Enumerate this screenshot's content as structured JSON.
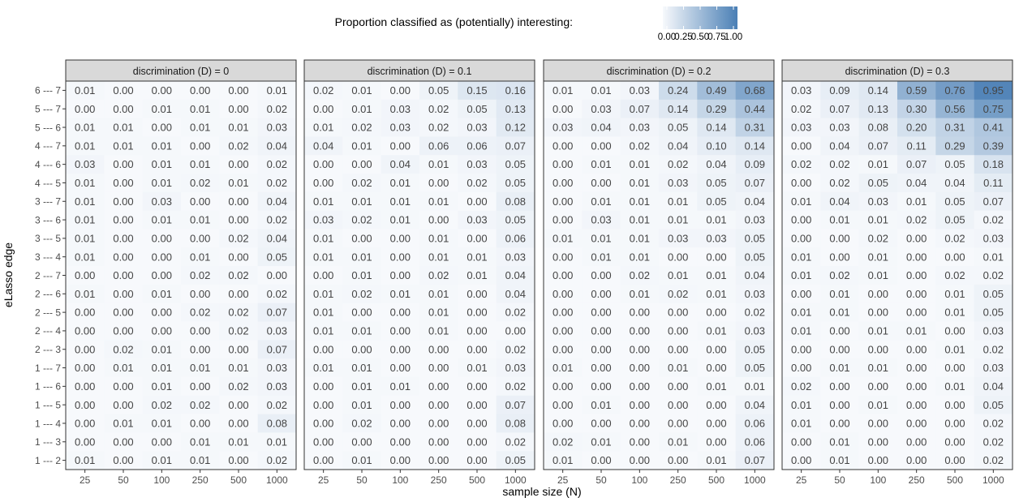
{
  "legend": {
    "title": "Proportion classified as (potentially) interesting:",
    "ticks": [
      "0.00",
      "0.25",
      "0.50",
      "0.75",
      "1.00"
    ],
    "low_color": "#f7f9fc",
    "high_color": "#4a7fb5"
  },
  "chart_data": {
    "type": "heatmap",
    "xlabel": "sample size (N)",
    "ylabel": "eLasso edge",
    "x_categories": [
      "25",
      "50",
      "100",
      "250",
      "500",
      "1000"
    ],
    "y_categories": [
      "6 --- 7",
      "5 --- 7",
      "5 --- 6",
      "4 --- 7",
      "4 --- 6",
      "4 --- 5",
      "3 --- 7",
      "3 --- 6",
      "3 --- 5",
      "3 --- 4",
      "2 --- 7",
      "2 --- 6",
      "2 --- 5",
      "2 --- 4",
      "2 --- 3",
      "1 --- 7",
      "1 --- 6",
      "1 --- 5",
      "1 --- 4",
      "1 --- 3",
      "1 --- 2"
    ],
    "value_range": [
      0,
      1
    ],
    "panels": [
      {
        "title": "discrimination (D) = 0",
        "values": [
          [
            0.01,
            0.0,
            0.0,
            0.0,
            0.0,
            0.01
          ],
          [
            0.0,
            0.0,
            0.01,
            0.01,
            0.0,
            0.02
          ],
          [
            0.01,
            0.01,
            0.0,
            0.01,
            0.01,
            0.03
          ],
          [
            0.01,
            0.01,
            0.01,
            0.0,
            0.02,
            0.04
          ],
          [
            0.03,
            0.0,
            0.01,
            0.01,
            0.0,
            0.02
          ],
          [
            0.01,
            0.0,
            0.01,
            0.02,
            0.01,
            0.02
          ],
          [
            0.01,
            0.0,
            0.03,
            0.0,
            0.0,
            0.04
          ],
          [
            0.01,
            0.0,
            0.01,
            0.01,
            0.0,
            0.02
          ],
          [
            0.01,
            0.0,
            0.0,
            0.0,
            0.02,
            0.04
          ],
          [
            0.01,
            0.0,
            0.0,
            0.01,
            0.0,
            0.05
          ],
          [
            0.0,
            0.0,
            0.0,
            0.02,
            0.02,
            0.0
          ],
          [
            0.01,
            0.0,
            0.01,
            0.0,
            0.0,
            0.02
          ],
          [
            0.0,
            0.0,
            0.0,
            0.02,
            0.02,
            0.07
          ],
          [
            0.0,
            0.0,
            0.0,
            0.0,
            0.02,
            0.03
          ],
          [
            0.0,
            0.02,
            0.01,
            0.0,
            0.0,
            0.07
          ],
          [
            0.0,
            0.01,
            0.01,
            0.01,
            0.01,
            0.03
          ],
          [
            0.0,
            0.0,
            0.01,
            0.0,
            0.02,
            0.03
          ],
          [
            0.0,
            0.0,
            0.02,
            0.02,
            0.0,
            0.02
          ],
          [
            0.0,
            0.01,
            0.01,
            0.0,
            0.0,
            0.08
          ],
          [
            0.0,
            0.0,
            0.0,
            0.01,
            0.01,
            0.01
          ],
          [
            0.01,
            0.0,
            0.01,
            0.01,
            0.0,
            0.02
          ]
        ]
      },
      {
        "title": "discrimination (D) = 0.1",
        "values": [
          [
            0.02,
            0.01,
            0.0,
            0.05,
            0.15,
            0.16
          ],
          [
            0.0,
            0.01,
            0.03,
            0.02,
            0.05,
            0.13
          ],
          [
            0.01,
            0.02,
            0.03,
            0.02,
            0.03,
            0.12
          ],
          [
            0.04,
            0.01,
            0.0,
            0.06,
            0.06,
            0.07
          ],
          [
            0.0,
            0.0,
            0.04,
            0.01,
            0.03,
            0.05
          ],
          [
            0.0,
            0.02,
            0.01,
            0.0,
            0.02,
            0.05
          ],
          [
            0.01,
            0.01,
            0.01,
            0.01,
            0.0,
            0.08
          ],
          [
            0.03,
            0.02,
            0.01,
            0.0,
            0.03,
            0.05
          ],
          [
            0.01,
            0.0,
            0.0,
            0.01,
            0.0,
            0.06
          ],
          [
            0.01,
            0.01,
            0.0,
            0.01,
            0.01,
            0.03
          ],
          [
            0.0,
            0.01,
            0.0,
            0.02,
            0.01,
            0.04
          ],
          [
            0.01,
            0.02,
            0.01,
            0.01,
            0.0,
            0.04
          ],
          [
            0.01,
            0.0,
            0.0,
            0.01,
            0.0,
            0.02
          ],
          [
            0.01,
            0.01,
            0.0,
            0.01,
            0.0,
            0.0
          ],
          [
            0.0,
            0.0,
            0.0,
            0.0,
            0.0,
            0.02
          ],
          [
            0.01,
            0.01,
            0.0,
            0.0,
            0.01,
            0.03
          ],
          [
            0.0,
            0.01,
            0.01,
            0.0,
            0.0,
            0.02
          ],
          [
            0.0,
            0.01,
            0.0,
            0.0,
            0.0,
            0.07
          ],
          [
            0.0,
            0.02,
            0.0,
            0.0,
            0.0,
            0.08
          ],
          [
            0.0,
            0.0,
            0.0,
            0.0,
            0.0,
            0.02
          ],
          [
            0.0,
            0.01,
            0.0,
            0.0,
            0.0,
            0.05
          ]
        ]
      },
      {
        "title": "discrimination (D) = 0.2",
        "values": [
          [
            0.01,
            0.01,
            0.03,
            0.24,
            0.49,
            0.68
          ],
          [
            0.0,
            0.03,
            0.07,
            0.14,
            0.29,
            0.44
          ],
          [
            0.03,
            0.04,
            0.03,
            0.05,
            0.14,
            0.31
          ],
          [
            0.0,
            0.0,
            0.02,
            0.04,
            0.1,
            0.14
          ],
          [
            0.0,
            0.01,
            0.01,
            0.02,
            0.04,
            0.09
          ],
          [
            0.0,
            0.0,
            0.01,
            0.03,
            0.05,
            0.07
          ],
          [
            0.0,
            0.01,
            0.01,
            0.01,
            0.05,
            0.04
          ],
          [
            0.0,
            0.03,
            0.01,
            0.01,
            0.01,
            0.03
          ],
          [
            0.01,
            0.01,
            0.01,
            0.03,
            0.03,
            0.05
          ],
          [
            0.0,
            0.01,
            0.01,
            0.0,
            0.0,
            0.05
          ],
          [
            0.0,
            0.0,
            0.02,
            0.01,
            0.01,
            0.04
          ],
          [
            0.0,
            0.0,
            0.01,
            0.02,
            0.01,
            0.03
          ],
          [
            0.0,
            0.0,
            0.0,
            0.0,
            0.0,
            0.02
          ],
          [
            0.0,
            0.0,
            0.0,
            0.0,
            0.01,
            0.03
          ],
          [
            0.0,
            0.0,
            0.0,
            0.0,
            0.0,
            0.05
          ],
          [
            0.01,
            0.0,
            0.0,
            0.01,
            0.0,
            0.05
          ],
          [
            0.0,
            0.0,
            0.0,
            0.0,
            0.01,
            0.01
          ],
          [
            0.0,
            0.01,
            0.0,
            0.0,
            0.0,
            0.04
          ],
          [
            0.0,
            0.0,
            0.0,
            0.0,
            0.0,
            0.06
          ],
          [
            0.02,
            0.01,
            0.0,
            0.01,
            0.0,
            0.06
          ],
          [
            0.01,
            0.0,
            0.0,
            0.0,
            0.01,
            0.07
          ]
        ]
      },
      {
        "title": "discrimination (D) = 0.3",
        "values": [
          [
            0.03,
            0.09,
            0.14,
            0.59,
            0.76,
            0.95
          ],
          [
            0.02,
            0.07,
            0.13,
            0.3,
            0.56,
            0.75
          ],
          [
            0.03,
            0.03,
            0.08,
            0.2,
            0.31,
            0.41
          ],
          [
            0.0,
            0.04,
            0.07,
            0.11,
            0.29,
            0.39
          ],
          [
            0.02,
            0.02,
            0.01,
            0.07,
            0.05,
            0.18
          ],
          [
            0.0,
            0.02,
            0.05,
            0.04,
            0.04,
            0.11
          ],
          [
            0.01,
            0.04,
            0.03,
            0.01,
            0.05,
            0.07
          ],
          [
            0.0,
            0.01,
            0.01,
            0.02,
            0.05,
            0.02
          ],
          [
            0.0,
            0.0,
            0.02,
            0.0,
            0.02,
            0.03
          ],
          [
            0.01,
            0.0,
            0.01,
            0.0,
            0.0,
            0.01
          ],
          [
            0.01,
            0.02,
            0.01,
            0.0,
            0.02,
            0.02
          ],
          [
            0.0,
            0.01,
            0.0,
            0.0,
            0.01,
            0.05
          ],
          [
            0.01,
            0.01,
            0.0,
            0.0,
            0.01,
            0.05
          ],
          [
            0.01,
            0.0,
            0.01,
            0.01,
            0.0,
            0.03
          ],
          [
            0.0,
            0.0,
            0.0,
            0.0,
            0.01,
            0.02
          ],
          [
            0.0,
            0.01,
            0.01,
            0.0,
            0.0,
            0.03
          ],
          [
            0.02,
            0.0,
            0.0,
            0.0,
            0.01,
            0.04
          ],
          [
            0.01,
            0.0,
            0.01,
            0.0,
            0.0,
            0.05
          ],
          [
            0.01,
            0.0,
            0.0,
            0.0,
            0.0,
            0.02
          ],
          [
            0.0,
            0.01,
            0.0,
            0.0,
            0.0,
            0.02
          ],
          [
            0.0,
            0.01,
            0.0,
            0.0,
            0.0,
            0.02
          ]
        ]
      }
    ]
  }
}
